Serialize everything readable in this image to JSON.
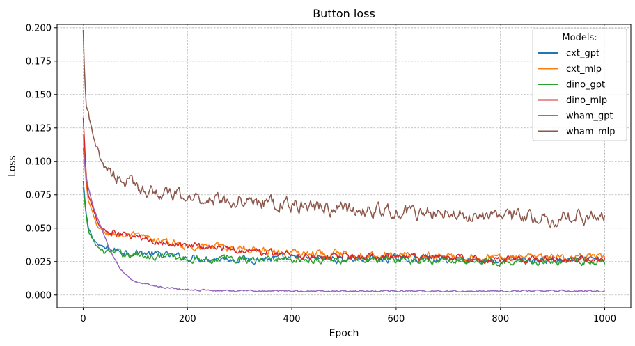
{
  "chart_data": {
    "type": "line",
    "title": "Button loss",
    "xlabel": "Epoch",
    "ylabel": "Loss",
    "xlim": [
      -50,
      1050
    ],
    "ylim": [
      -0.0095,
      0.2025
    ],
    "xticks": [
      "0",
      "200",
      "400",
      "600",
      "800",
      "1000"
    ],
    "xtick_values": [
      0,
      200,
      400,
      600,
      800,
      1000
    ],
    "yticks": [
      "0.000",
      "0.025",
      "0.050",
      "0.075",
      "0.100",
      "0.125",
      "0.150",
      "0.175",
      "0.200"
    ],
    "ytick_values": [
      0,
      0.025,
      0.05,
      0.075,
      0.1,
      0.125,
      0.15,
      0.175,
      0.2
    ],
    "grid": true,
    "legend": {
      "title": "Models:",
      "position": "top-right"
    },
    "series": [
      {
        "name": "cxt_gpt",
        "color": "#1f77b4",
        "x": [
          0,
          5,
          10,
          20,
          30,
          40,
          50,
          70,
          100,
          150,
          200,
          300,
          400,
          500,
          600,
          700,
          800,
          900,
          1000
        ],
        "y": [
          0.085,
          0.062,
          0.05,
          0.042,
          0.037,
          0.035,
          0.034,
          0.033,
          0.032,
          0.03,
          0.028,
          0.027,
          0.027,
          0.027,
          0.027,
          0.027,
          0.026,
          0.026,
          0.026
        ]
      },
      {
        "name": "cxt_mlp",
        "color": "#ff7f0e",
        "x": [
          0,
          5,
          10,
          20,
          30,
          40,
          50,
          70,
          100,
          150,
          200,
          300,
          400,
          500,
          600,
          700,
          800,
          900,
          1000
        ],
        "y": [
          0.12,
          0.085,
          0.07,
          0.058,
          0.05,
          0.047,
          0.046,
          0.045,
          0.044,
          0.04,
          0.037,
          0.035,
          0.032,
          0.031,
          0.03,
          0.029,
          0.028,
          0.028,
          0.028
        ]
      },
      {
        "name": "dino_gpt",
        "color": "#2ca02c",
        "x": [
          0,
          5,
          10,
          20,
          30,
          40,
          50,
          70,
          100,
          150,
          200,
          300,
          400,
          500,
          600,
          700,
          800,
          900,
          1000
        ],
        "y": [
          0.08,
          0.06,
          0.048,
          0.04,
          0.035,
          0.033,
          0.032,
          0.031,
          0.03,
          0.029,
          0.027,
          0.027,
          0.027,
          0.026,
          0.026,
          0.026,
          0.025,
          0.025,
          0.025
        ]
      },
      {
        "name": "dino_mlp",
        "color": "#d62728",
        "x": [
          0,
          5,
          10,
          20,
          30,
          40,
          50,
          70,
          100,
          150,
          200,
          300,
          400,
          500,
          600,
          700,
          800,
          900,
          1000
        ],
        "y": [
          0.132,
          0.095,
          0.075,
          0.062,
          0.052,
          0.048,
          0.047,
          0.045,
          0.043,
          0.04,
          0.037,
          0.034,
          0.03,
          0.029,
          0.028,
          0.028,
          0.027,
          0.027,
          0.027
        ]
      },
      {
        "name": "wham_gpt",
        "color": "#9467bd",
        "x": [
          0,
          5,
          10,
          20,
          30,
          40,
          50,
          60,
          70,
          80,
          100,
          150,
          200,
          300,
          400,
          500,
          600,
          700,
          800,
          900,
          1000
        ],
        "y": [
          0.11,
          0.09,
          0.08,
          0.065,
          0.055,
          0.045,
          0.035,
          0.027,
          0.02,
          0.016,
          0.01,
          0.006,
          0.004,
          0.003,
          0.003,
          0.003,
          0.003,
          0.003,
          0.003,
          0.003,
          0.003
        ]
      },
      {
        "name": "wham_mlp",
        "color": "#8c564b",
        "x": [
          0,
          3,
          6,
          10,
          20,
          30,
          40,
          50,
          60,
          70,
          80,
          100,
          150,
          200,
          250,
          300,
          350,
          400,
          450,
          500,
          600,
          700,
          800,
          900,
          1000
        ],
        "y": [
          0.196,
          0.16,
          0.142,
          0.135,
          0.115,
          0.105,
          0.098,
          0.093,
          0.09,
          0.088,
          0.085,
          0.082,
          0.076,
          0.073,
          0.072,
          0.071,
          0.069,
          0.067,
          0.066,
          0.064,
          0.062,
          0.06,
          0.059,
          0.058,
          0.058
        ]
      }
    ]
  }
}
